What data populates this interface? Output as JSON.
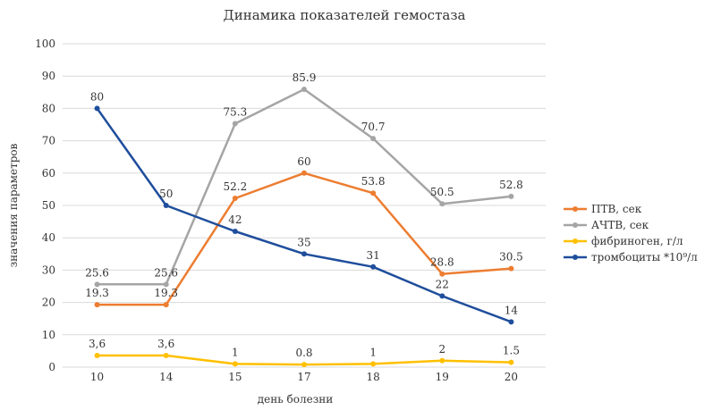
{
  "chart_data": {
    "type": "line",
    "title": "Динамика показателей гемостаза",
    "xlabel": "день болезни",
    "ylabel": "значения параметров",
    "categories": [
      "10",
      "14",
      "15",
      "17",
      "18",
      "19",
      "20"
    ],
    "ylim": [
      0,
      100
    ],
    "yticks": [
      0,
      10,
      20,
      30,
      40,
      50,
      60,
      70,
      80,
      90,
      100
    ],
    "grid": true,
    "legend_position": "right",
    "series": [
      {
        "name": "ПТВ, сек",
        "color": "#ed7d31",
        "values": [
          19.3,
          19.3,
          52.2,
          60,
          53.8,
          28.8,
          30.5
        ],
        "labels": [
          "19.3",
          "19.3",
          "52.2",
          "60",
          "53.8",
          "28.8",
          "30.5"
        ]
      },
      {
        "name": "АЧТВ, сек",
        "color": "#a5a5a5",
        "values": [
          25.6,
          25.6,
          75.3,
          85.9,
          70.7,
          50.5,
          52.8
        ],
        "labels": [
          "25.6",
          "25.6",
          "75.3",
          "85.9",
          "70.7",
          "50.5",
          "52.8"
        ]
      },
      {
        "name": "фибриноген, г/л",
        "color": "#ffc000",
        "values": [
          3.6,
          3.6,
          1,
          0.8,
          1,
          2,
          1.5
        ],
        "labels": [
          "3,6",
          "3,6",
          "1",
          "0.8",
          "1",
          "2",
          "1.5"
        ]
      },
      {
        "name": "тромбоциты *10⁹/л",
        "color": "#1f4e9c",
        "values": [
          80,
          50,
          42,
          35,
          31,
          22,
          14
        ],
        "labels": [
          "80",
          "50",
          "42",
          "35",
          "31",
          "22",
          "14"
        ]
      }
    ]
  }
}
